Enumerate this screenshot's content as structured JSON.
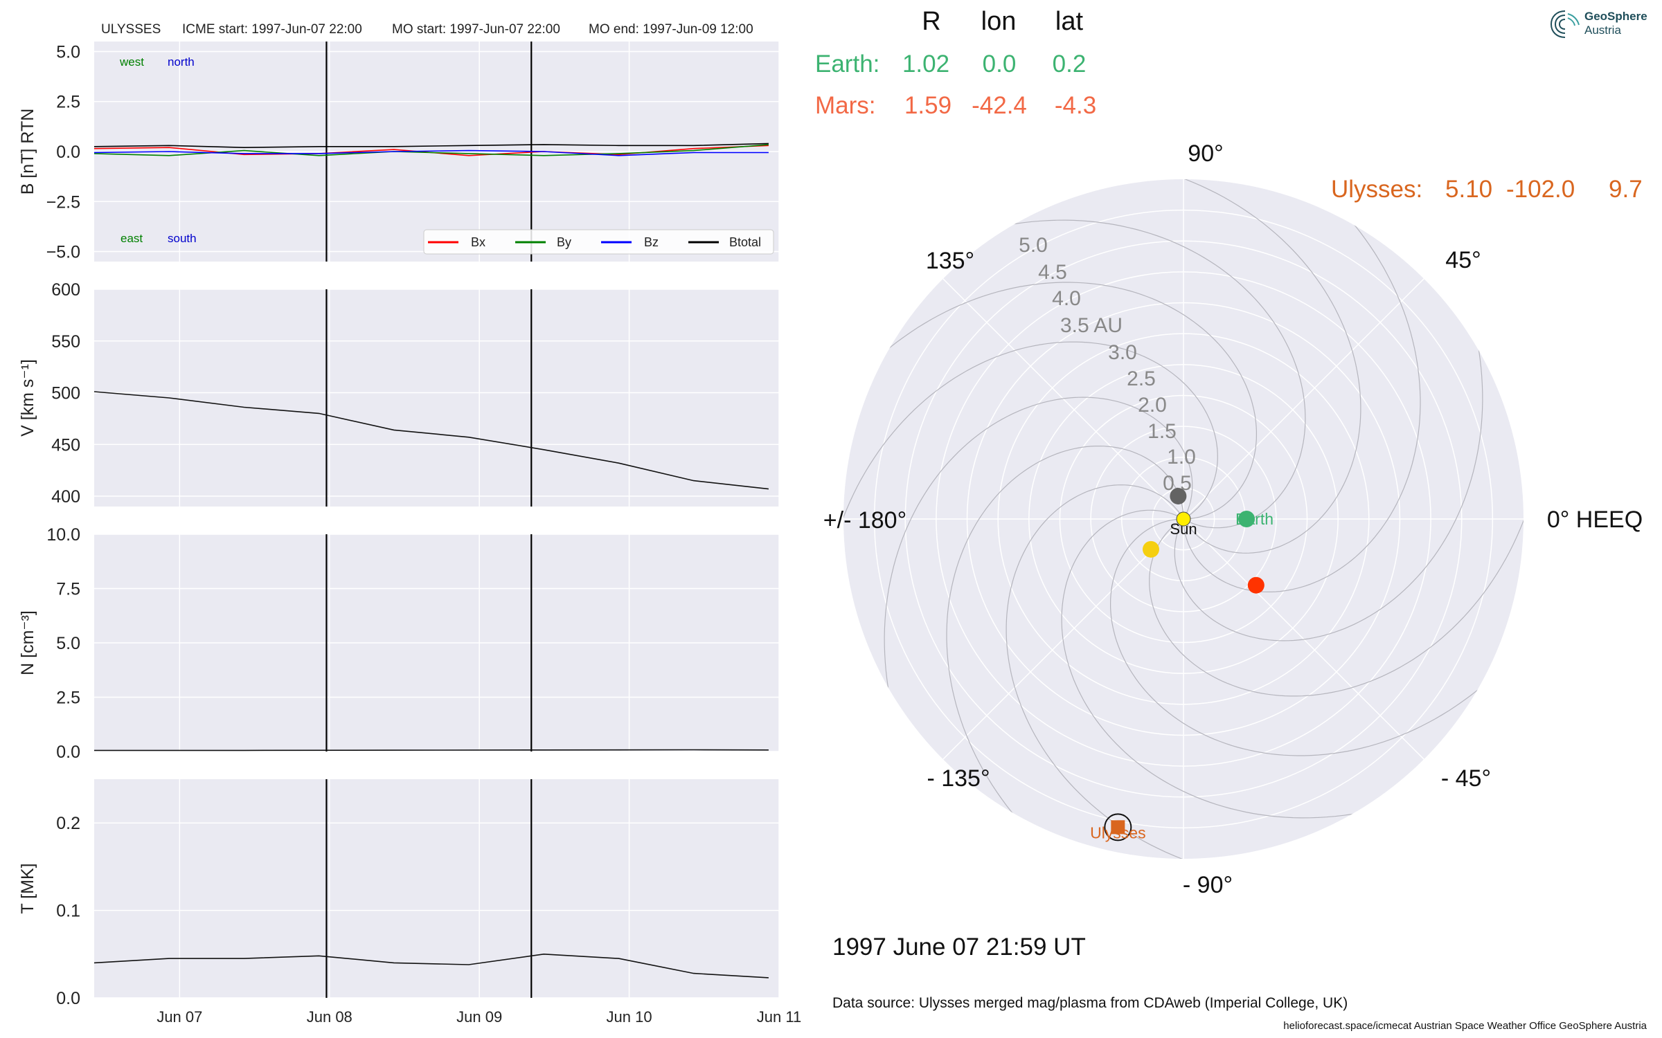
{
  "colors": {
    "earth": "#3cb371",
    "mars": "#f26845",
    "ulysses": "#d9661f",
    "sun": "#ffee00",
    "venus": "#f5cf10",
    "mercury": "#636363",
    "mars_dot": "#ff3300",
    "bx": "#ff0000",
    "by": "#008000",
    "bz": "#0000ff",
    "btotal": "#000000",
    "panel_bg": "#eaeaf2",
    "grid": "#ffffff"
  },
  "header": {
    "spacecraft": "ULYSSES",
    "icme_start": "ICME start: 1997-Jun-07 22:00",
    "mo_start": "MO start: 1997-Jun-07 22:00",
    "mo_end": "MO end: 1997-Jun-09 12:00"
  },
  "positions_table": {
    "headers": [
      "R",
      "lon",
      "lat"
    ],
    "rows": [
      {
        "name": "Earth:",
        "r": "1.02",
        "lon": "0.0",
        "lat": "0.2"
      },
      {
        "name": "Mars:",
        "r": "1.59",
        "lon": "-42.4",
        "lat": "-4.3"
      }
    ],
    "ulysses": {
      "name": "Ulysses:",
      "r": "5.10",
      "lon": "-102.0",
      "lat": "9.7"
    }
  },
  "timestamp": "1997 June 07  21:59 UT",
  "data_source": "Data source: Ulysses merged mag/plasma from CDAweb (Imperial College, UK)",
  "footer": "helioforecast.space/icmecat   Austrian Space Weather Office   GeoSphere Austria",
  "logo": {
    "line1": "GeoSphere",
    "line2": "Austria"
  },
  "chart_data": [
    {
      "type": "line",
      "ylabel": "B [nT] RTN",
      "ylim": [
        -5.5,
        5.5
      ],
      "yticks": [
        "5.0",
        "2.5",
        "0.0",
        "−2.5",
        "−5.0"
      ],
      "ytick_values": [
        5.0,
        2.5,
        0.0,
        -2.5,
        -5.0
      ],
      "annotations": {
        "west": "west",
        "north": "north",
        "east": "east",
        "south": "south"
      },
      "legend": {
        "placement": "lower right",
        "labels": [
          "Bx",
          "By",
          "Bz",
          "Btotal"
        ]
      },
      "x": [
        0,
        0.5,
        1,
        1.5,
        2,
        2.5,
        3,
        3.5,
        4,
        4.5
      ],
      "series": [
        {
          "name": "Bx",
          "values": [
            0.15,
            0.2,
            -0.15,
            -0.1,
            0.1,
            -0.2,
            0.0,
            -0.15,
            0.15,
            0.3
          ]
        },
        {
          "name": "By",
          "values": [
            -0.1,
            -0.2,
            0.05,
            -0.2,
            0.0,
            -0.1,
            -0.2,
            -0.1,
            0.05,
            0.35
          ]
        },
        {
          "name": "Bz",
          "values": [
            -0.05,
            0.0,
            -0.1,
            -0.1,
            0.0,
            0.05,
            0.0,
            -0.2,
            -0.05,
            -0.05
          ]
        },
        {
          "name": "Btotal",
          "values": [
            0.25,
            0.3,
            0.2,
            0.25,
            0.25,
            0.3,
            0.35,
            0.3,
            0.3,
            0.4
          ]
        }
      ]
    },
    {
      "type": "line",
      "ylabel": "V [km s⁻¹]",
      "ylim": [
        390,
        600
      ],
      "yticks": [
        "600",
        "550",
        "500",
        "450",
        "400"
      ],
      "ytick_values": [
        600,
        550,
        500,
        450,
        400
      ],
      "x": [
        0,
        0.5,
        1,
        1.5,
        2,
        2.5,
        3,
        3.5,
        4,
        4.5
      ],
      "series": [
        {
          "name": "V",
          "values": [
            501,
            495,
            486,
            480,
            464,
            457,
            445,
            432,
            415,
            407
          ]
        }
      ]
    },
    {
      "type": "line",
      "ylabel": "N [cm⁻³]",
      "ylim": [
        0,
        10
      ],
      "yticks": [
        "10.0",
        "7.5",
        "5.0",
        "2.5",
        "0.0"
      ],
      "ytick_values": [
        10.0,
        7.5,
        5.0,
        2.5,
        0.0
      ],
      "x": [
        0,
        1,
        2,
        3,
        4,
        4.5
      ],
      "series": [
        {
          "name": "N",
          "values": [
            0.05,
            0.05,
            0.06,
            0.07,
            0.08,
            0.07
          ]
        }
      ]
    },
    {
      "type": "line",
      "ylabel": "T [MK]",
      "ylim": [
        0,
        0.25
      ],
      "yticks": [
        "0.2",
        "0.1",
        "0.0"
      ],
      "ytick_values": [
        0.2,
        0.1,
        0.0
      ],
      "xticks": [
        "Jun 07",
        "Jun 08",
        "Jun 09",
        "Jun 10",
        "Jun 11"
      ],
      "xtick_values": [
        0.57,
        1.57,
        2.57,
        3.57,
        4.57
      ],
      "x": [
        0,
        0.5,
        1,
        1.5,
        2,
        2.5,
        3,
        3.5,
        4,
        4.5
      ],
      "series": [
        {
          "name": "T",
          "values": [
            0.04,
            0.045,
            0.045,
            0.048,
            0.04,
            0.038,
            0.05,
            0.045,
            0.028,
            0.023
          ]
        }
      ]
    },
    {
      "type": "scatter",
      "projection": "polar",
      "r_ticks": [
        "0.5",
        "1.0",
        "1.5",
        "2.0",
        "2.5",
        "3.0",
        "3.5 AU",
        "4.0",
        "4.5",
        "5.0"
      ],
      "r_tick_values": [
        0.5,
        1.0,
        1.5,
        2.0,
        2.5,
        3.0,
        3.5,
        4.0,
        4.5,
        5.0
      ],
      "rlim": [
        0,
        5.5
      ],
      "angle_labels": {
        "0": "0° HEEQ",
        "45": "45°",
        "90": "90°",
        "135": "135°",
        "180": "+/- 180°",
        "-135": "- 135°",
        "-90": "- 90°",
        "-45": "- 45°"
      },
      "bodies": [
        {
          "name": "Sun",
          "label": "Sun",
          "r": 0.0,
          "lon": 0.0
        },
        {
          "name": "Mercury",
          "r": 0.38,
          "lon": 103.0
        },
        {
          "name": "Venus",
          "r": 0.72,
          "lon": -137.0
        },
        {
          "name": "Earth",
          "label": "Earth",
          "r": 1.02,
          "lon": 0.0
        },
        {
          "name": "Mars",
          "r": 1.59,
          "lon": -42.4
        },
        {
          "name": "Ulysses",
          "label": "Ulysses",
          "r": 5.1,
          "lon": -102.0
        }
      ]
    }
  ]
}
